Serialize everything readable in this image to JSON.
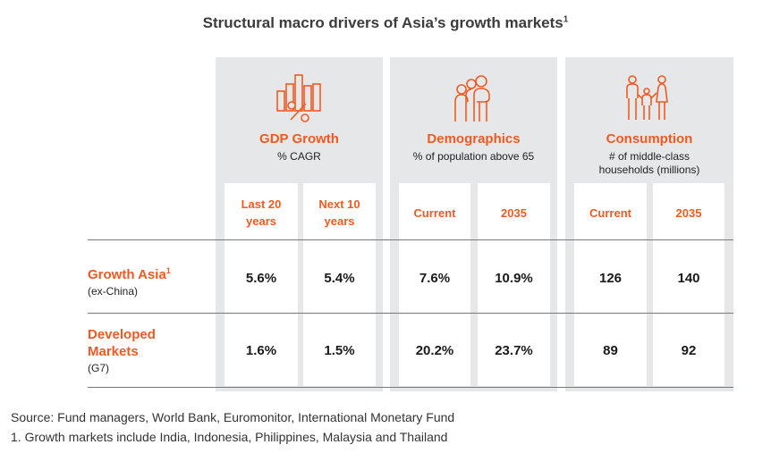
{
  "title": "Structural macro drivers of Asia’s growth markets",
  "title_sup": "1",
  "categories": [
    {
      "name": "GDP Growth",
      "subtitle": "% CAGR",
      "icon": "bar-chart-percent-icon",
      "columns": [
        "Last 20 years",
        "Next 10 years"
      ]
    },
    {
      "name": "Demographics",
      "subtitle": "% of population above 65",
      "icon": "elderly-people-icon",
      "columns": [
        "Current",
        "2035"
      ]
    },
    {
      "name": "Consumption",
      "subtitle": "# of middle-class households (millions)",
      "icon": "family-icon",
      "columns": [
        "Current",
        "2035"
      ]
    }
  ],
  "rows": [
    {
      "label": "Growth Asia",
      "sup": "1",
      "sublabel": "(ex-China)",
      "values": [
        "5.6%",
        "5.4%",
        "7.6%",
        "10.9%",
        "126",
        "140"
      ]
    },
    {
      "label": "Developed Markets",
      "sublabel": "(G7)",
      "values": [
        "1.6%",
        "1.5%",
        "20.2%",
        "23.7%",
        "89",
        "92"
      ]
    }
  ],
  "footnotes": [
    "Source: Fund managers, World Bank, Euromonitor, International Monetary Fund",
    "1. Growth markets include India, Indonesia, Philippines, Malaysia and Thailand"
  ],
  "colors": {
    "accent": "#f05a22",
    "panel": "#e6e7e8"
  }
}
